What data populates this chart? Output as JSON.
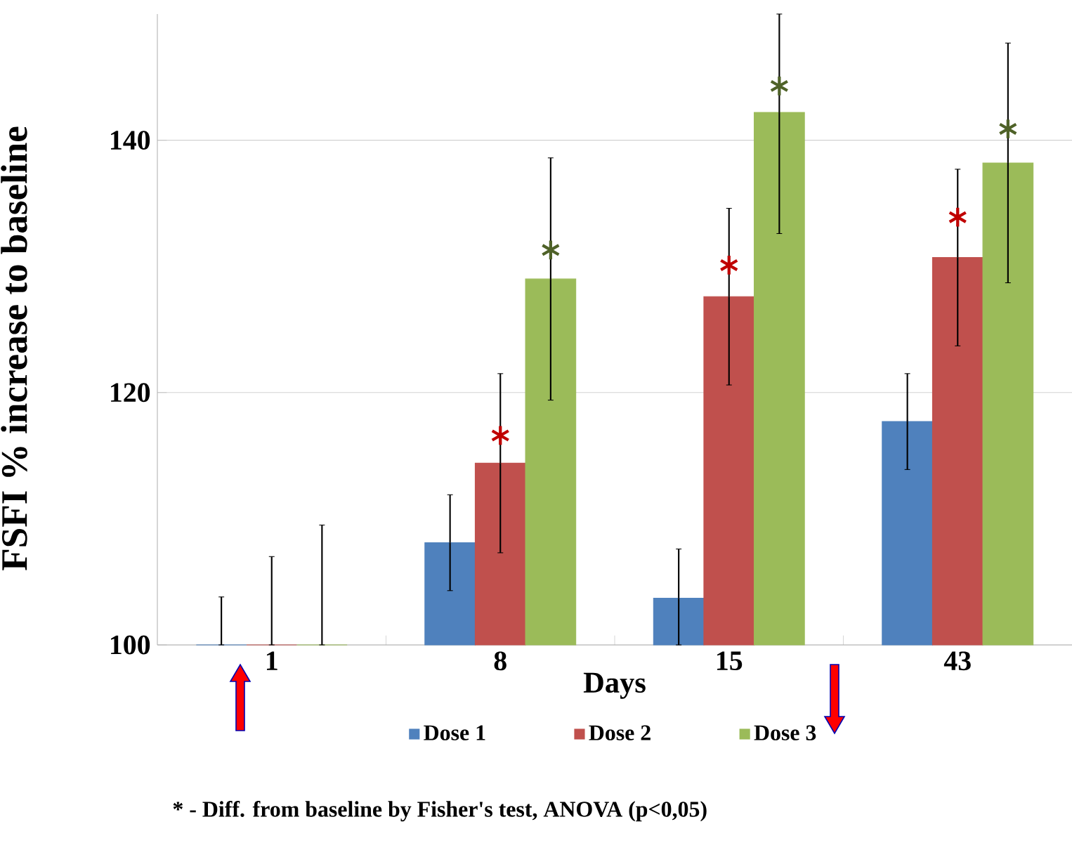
{
  "chart_data": {
    "type": "bar",
    "ylabel": "FSFI % increase to baseline",
    "xlabel": "Days",
    "categories": [
      "1",
      "8",
      "15",
      "43"
    ],
    "ylim": [
      100,
      150
    ],
    "yticks": [
      100,
      120,
      140
    ],
    "grid": "y",
    "legend": "bottom",
    "series": [
      {
        "name": "Dose 1",
        "color": "#4f81bd",
        "values": [
          100,
          108.1,
          103.7,
          117.7
        ],
        "errors": [
          [
            100,
            103.8
          ],
          3.8,
          [
            100,
            107.6
          ],
          3.8
        ]
      },
      {
        "name": "Dose 2",
        "color": "#c0504d",
        "values": [
          100,
          114.4,
          127.6,
          130.7
        ],
        "errors": [
          [
            100,
            107.0
          ],
          7.1,
          7.0,
          7.0
        ]
      },
      {
        "name": "Dose 3",
        "color": "#9bbb59",
        "values": [
          100,
          129.0,
          142.2,
          138.2
        ],
        "errors": [
          [
            100,
            109.5
          ],
          9.6,
          [
            132.6,
            150
          ],
          9.5
        ]
      },
      {
        "type": "scatter",
        "marker": "cross",
        "color": "#c00000",
        "x": [
          "8",
          "15",
          "43"
        ],
        "values": [
          116.6,
          130.1,
          133.9
        ]
      },
      {
        "type": "scatter",
        "marker": "cross",
        "color": "#4f6228",
        "x": [
          "8",
          "15",
          "43"
        ],
        "values": [
          131.3,
          144.3,
          140.9
        ]
      }
    ],
    "annotations": [
      "* - Diff. from baseline by Fisher's test, ANOVA (p<0,05)"
    ]
  }
}
